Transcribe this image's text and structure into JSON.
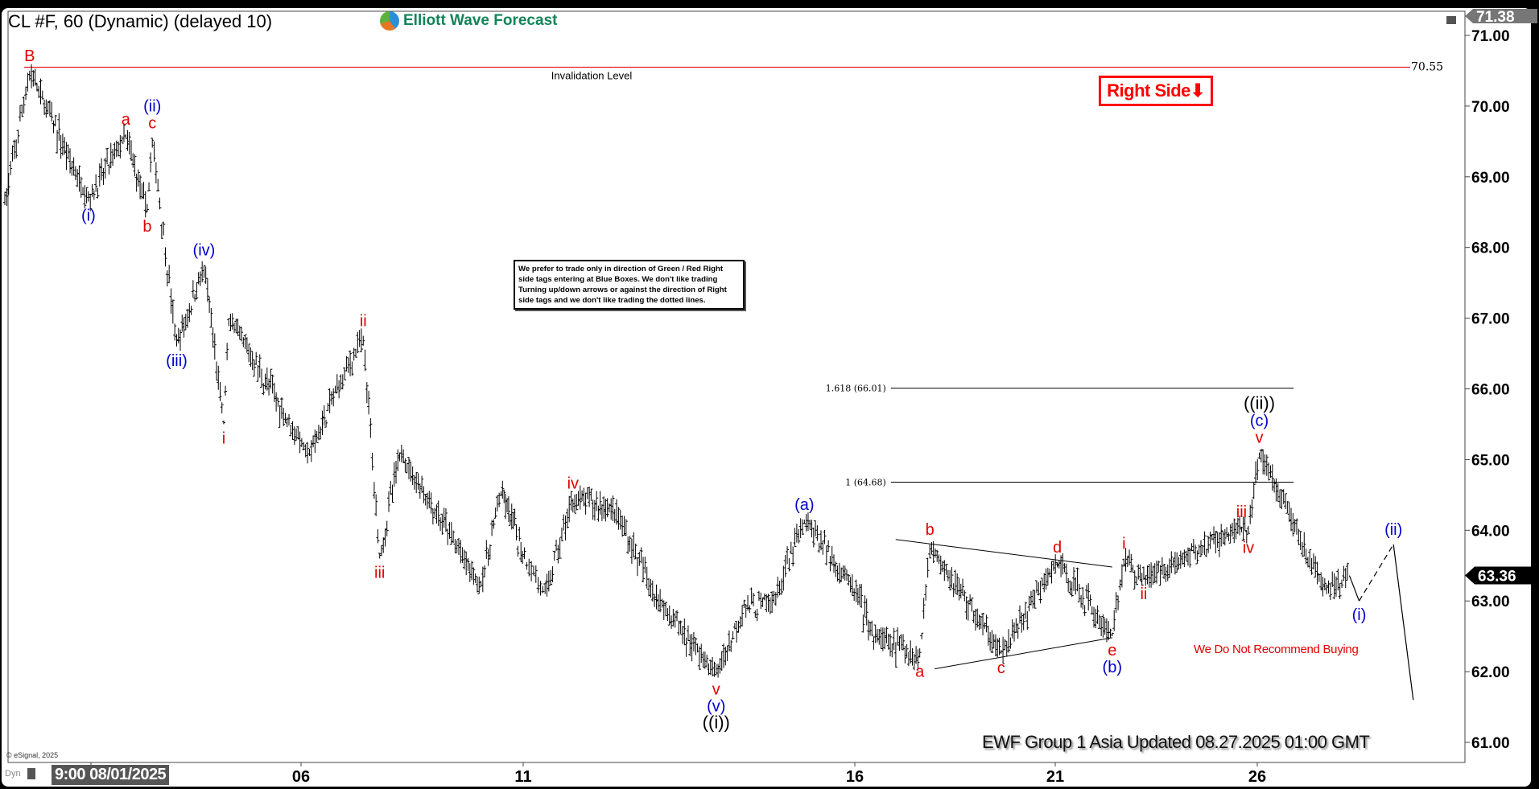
{
  "header": {
    "title": "CL #F, 60 (Dynamic) (delayed 10)",
    "logo_text": "Elliott Wave Forecast"
  },
  "right_side_tag": {
    "label": "Right Side",
    "arrow": "⬇",
    "color": "#ff0000"
  },
  "note": "We prefer to trade only in direction of Green / Red Right side tags entering at Blue Boxes. We don't like trading Turning up/down arrows or against the direction of Right side tags and we don't like trading the dotted lines.",
  "warning": "We Do Not Recommend Buying",
  "footer": "EWF Group 1 Asia Updated 08.27.2025 01:00 GMT",
  "copyright": "© eSignal, 2025",
  "dyn_label": "Dyn",
  "colors": {
    "red": "#e00000",
    "blue": "#0000cc",
    "black": "#000000",
    "invalidation": "#e00000"
  },
  "chart_data": {
    "type": "ohlc-bar",
    "symbol": "CL #F",
    "interval": "60",
    "ylim": [
      60.8,
      71.38
    ],
    "y_ticks": [
      "71.00",
      "70.00",
      "69.00",
      "68.00",
      "67.00",
      "66.00",
      "65.00",
      "64.00",
      "63.00",
      "62.00",
      "61.00"
    ],
    "x_ticks": [
      {
        "day": 1,
        "label": "9:00 08/01/2025"
      },
      {
        "day": 6,
        "label": "06"
      },
      {
        "day": 11,
        "label": "11"
      },
      {
        "day": 16,
        "label": "16"
      },
      {
        "day": 21,
        "label": "21"
      },
      {
        "day": 26,
        "label": "26"
      }
    ],
    "x_unit": "day of August 2025",
    "high_tag": "71.38",
    "last_price_tag": "63.36",
    "last_price": 63.36,
    "invalidation": {
      "label": "Invalidation Level",
      "price": 70.55,
      "price_label": "70.55"
    },
    "fib_levels": [
      {
        "label": "1.618 (66.01)",
        "price": 66.01,
        "from_day": 16.9,
        "to_day": 26.9
      },
      {
        "label": "1 (64.68)",
        "price": 64.68,
        "from_day": 16.9,
        "to_day": 26.9
      }
    ],
    "triangle": [
      {
        "from": [
          17.02,
          63.87
        ],
        "to": [
          22.41,
          63.48
        ]
      },
      {
        "from": [
          17.99,
          62.04
        ],
        "to": [
          22.41,
          62.48
        ]
      }
    ],
    "pivots": [
      {
        "day": -1.05,
        "price": 68.6
      },
      {
        "day": -0.46,
        "price": 70.5,
        "pos": "above",
        "labels": [
          {
            "t": "B",
            "c": "red"
          }
        ]
      },
      {
        "day": 0.94,
        "price": 68.65,
        "pos": "below",
        "labels": [
          {
            "t": "(i)",
            "c": "blue"
          }
        ]
      },
      {
        "day": 1.83,
        "price": 69.6,
        "pos": "above",
        "labels": [
          {
            "t": "a",
            "c": "red"
          }
        ]
      },
      {
        "day": 2.34,
        "price": 68.5,
        "pos": "below",
        "labels": [
          {
            "t": "b",
            "c": "red"
          }
        ]
      },
      {
        "day": 2.46,
        "price": 69.55,
        "pos": "above",
        "labels": [
          {
            "t": "c",
            "c": "red"
          },
          {
            "t": "(ii)",
            "c": "blue"
          }
        ]
      },
      {
        "day": 3.04,
        "price": 66.6,
        "pos": "below",
        "labels": [
          {
            "t": "(iii)",
            "c": "blue"
          }
        ]
      },
      {
        "day": 3.69,
        "price": 67.75,
        "pos": "above",
        "labels": [
          {
            "t": "(iv)",
            "c": "blue"
          }
        ]
      },
      {
        "day": 4.16,
        "price": 65.5,
        "pos": "below",
        "labels": [
          {
            "t": "i",
            "c": "red"
          }
        ]
      },
      {
        "day": 4.28,
        "price": 67.0
      },
      {
        "day": 6.19,
        "price": 65.05
      },
      {
        "day": 6.77,
        "price": 65.95
      },
      {
        "day": 7.4,
        "price": 66.75,
        "pos": "above",
        "labels": [
          {
            "t": "ii",
            "c": "red"
          }
        ]
      },
      {
        "day": 7.77,
        "price": 63.6,
        "pos": "below",
        "labels": [
          {
            "t": "iii",
            "c": "red"
          }
        ]
      },
      {
        "day": 8.22,
        "price": 65.1
      },
      {
        "day": 10.05,
        "price": 63.2
      },
      {
        "day": 10.5,
        "price": 64.55
      },
      {
        "day": 11.33,
        "price": 63.1
      },
      {
        "day": 11.75,
        "price": 64.45,
        "pos": "above",
        "labels": [
          {
            "t": "iv",
            "c": "red"
          }
        ]
      },
      {
        "day": 12.38,
        "price": 64.3
      },
      {
        "day": 12.98,
        "price": 63.1
      },
      {
        "day": 13.91,
        "price": 61.95,
        "pos": "below",
        "labels": [
          {
            "t": "v",
            "c": "red"
          },
          {
            "t": "(v)",
            "c": "blue"
          },
          {
            "t": "((i))",
            "c": "black"
          }
        ]
      },
      {
        "day": 14.33,
        "price": 62.9
      },
      {
        "day": 14.78,
        "price": 62.97
      },
      {
        "day": 15.24,
        "price": 64.15,
        "pos": "above",
        "labels": [
          {
            "t": "(a)",
            "c": "blue"
          }
        ]
      },
      {
        "day": 15.99,
        "price": 63.18
      },
      {
        "day": 16.47,
        "price": 62.5
      },
      {
        "day": 17.62,
        "price": 62.2,
        "pos": "below",
        "labels": [
          {
            "t": "a",
            "c": "red"
          }
        ]
      },
      {
        "day": 17.87,
        "price": 63.8,
        "pos": "above",
        "labels": [
          {
            "t": "b",
            "c": "red"
          }
        ]
      },
      {
        "day": 19.65,
        "price": 62.25,
        "pos": "below",
        "labels": [
          {
            "t": "c",
            "c": "red"
          }
        ]
      },
      {
        "day": 21.05,
        "price": 63.55,
        "pos": "above",
        "labels": [
          {
            "t": "d",
            "c": "red"
          }
        ]
      },
      {
        "day": 22.41,
        "price": 62.5,
        "pos": "below",
        "labels": [
          {
            "t": "e",
            "c": "red"
          },
          {
            "t": "(b)",
            "c": "blue"
          }
        ]
      },
      {
        "day": 22.7,
        "price": 63.6,
        "pos": "above",
        "labels": [
          {
            "t": "i",
            "c": "red"
          }
        ]
      },
      {
        "day": 23.19,
        "price": 63.3,
        "pos": "below",
        "labels": [
          {
            "t": "ii",
            "c": "red"
          }
        ]
      },
      {
        "day": 25.61,
        "price": 64.05,
        "pos": "above",
        "labels": [
          {
            "t": "iii",
            "c": "red"
          }
        ]
      },
      {
        "day": 25.78,
        "price": 63.95,
        "pos": "below",
        "labels": [
          {
            "t": "iv",
            "c": "red"
          }
        ]
      },
      {
        "day": 26.05,
        "price": 65.1,
        "pos": "above",
        "labels": [
          {
            "t": "v",
            "c": "red"
          },
          {
            "t": "(c)",
            "c": "blue"
          },
          {
            "t": "((ii))",
            "c": "black"
          }
        ]
      },
      {
        "day": 27.67,
        "price": 63.15
      },
      {
        "day": 28.28,
        "price": 63.36
      }
    ],
    "projection": [
      {
        "day": 28.52,
        "price": 63.0,
        "pos": "below",
        "labels": [
          {
            "t": "(i)",
            "c": "blue"
          }
        ],
        "style": "solid"
      },
      {
        "day": 29.37,
        "price": 63.8,
        "pos": "above",
        "labels": [
          {
            "t": "(ii)",
            "c": "blue"
          }
        ],
        "style": "dashed"
      },
      {
        "day": 29.86,
        "price": 61.6,
        "style": "solid"
      }
    ]
  }
}
